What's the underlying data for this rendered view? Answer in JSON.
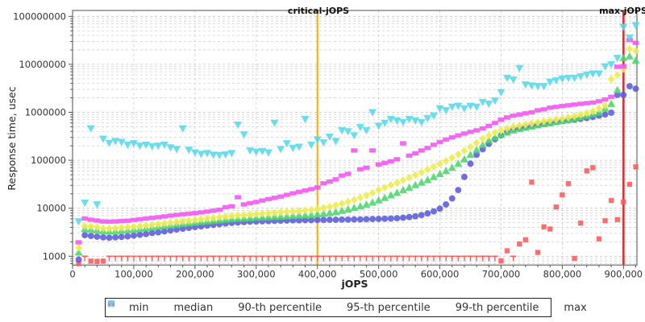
{
  "chart_data": {
    "type": "scatter",
    "title": "",
    "xlabel": "jOPS",
    "ylabel": "Response time, usec",
    "y_scale": "log",
    "grid": "dashed light-gray, log minor horizontal lines, vertical lines every 100000",
    "legend_position": "bottom-center",
    "xlim": [
      0,
      922000
    ],
    "ylim": [
      654,
      133000000
    ],
    "x_ticks": [
      0,
      100000,
      200000,
      300000,
      400000,
      500000,
      600000,
      700000,
      800000,
      900000
    ],
    "x_tick_labels": [
      "0",
      "100,000",
      "200,000",
      "300,000",
      "400,000",
      "500,000",
      "600,000",
      "700,000",
      "800,000",
      "900,000"
    ],
    "y_ticks": [
      1000,
      10000,
      100000,
      1000000,
      10000000,
      100000000
    ],
    "y_tick_labels": [
      "1000",
      "10000",
      "100000",
      "1000000",
      "10000000",
      "100000000"
    ],
    "reference_lines": [
      {
        "label": "critical-jOPS",
        "x": 400000,
        "color": "#ffaa00"
      },
      {
        "label": "max-jOPS",
        "x": 900000,
        "color": "#e03030"
      }
    ],
    "x": [
      10000,
      20000,
      30000,
      40000,
      50000,
      60000,
      70000,
      80000,
      90000,
      100000,
      110000,
      120000,
      130000,
      140000,
      150000,
      160000,
      170000,
      180000,
      190000,
      200000,
      210000,
      220000,
      230000,
      240000,
      250000,
      260000,
      270000,
      280000,
      290000,
      300000,
      310000,
      320000,
      330000,
      340000,
      350000,
      360000,
      370000,
      380000,
      390000,
      400000,
      410000,
      420000,
      430000,
      440000,
      450000,
      460000,
      470000,
      480000,
      490000,
      500000,
      510000,
      520000,
      530000,
      540000,
      550000,
      560000,
      570000,
      580000,
      590000,
      600000,
      610000,
      620000,
      630000,
      640000,
      650000,
      660000,
      670000,
      680000,
      690000,
      700000,
      710000,
      720000,
      730000,
      740000,
      750000,
      760000,
      770000,
      780000,
      790000,
      800000,
      810000,
      820000,
      830000,
      840000,
      850000,
      860000,
      870000,
      880000,
      890000,
      900000,
      910000,
      920000
    ],
    "series": [
      {
        "name": "min",
        "marker": "square",
        "color": "#ff5a5a",
        "values": [
          700,
          1000,
          790,
          780,
          790,
          1000,
          1000,
          1000,
          1000,
          1000,
          1000,
          1000,
          1000,
          1000,
          1000,
          1000,
          1000,
          1000,
          1000,
          1000,
          1000,
          1000,
          1000,
          1000,
          1000,
          1000,
          1000,
          1000,
          1000,
          1000,
          1000,
          1000,
          1000,
          1000,
          1000,
          1000,
          1000,
          1000,
          1000,
          1000,
          1000,
          1000,
          1000,
          1000,
          1000,
          1000,
          1000,
          1000,
          1000,
          1000,
          1000,
          1000,
          1000,
          1000,
          1000,
          1000,
          1000,
          1000,
          1000,
          1000,
          1000,
          1000,
          1000,
          1000,
          1000,
          1000,
          1000,
          1000,
          1000,
          800,
          1300,
          1000,
          1800,
          2200,
          35000,
          1200,
          4100,
          3700,
          10600,
          19000,
          32600,
          900,
          4900,
          60000,
          70000,
          2300,
          5500,
          14500,
          5800,
          13500,
          31500,
          73000
        ]
      },
      {
        "name": "median",
        "marker": "circle",
        "color": "#5b5bdb",
        "values": [
          850,
          2750,
          2650,
          2560,
          2480,
          2430,
          2480,
          2530,
          2600,
          2700,
          2800,
          2900,
          3050,
          3150,
          3300,
          3450,
          3600,
          3750,
          3900,
          4050,
          4200,
          4350,
          4500,
          4650,
          4800,
          4950,
          5050,
          5150,
          5250,
          5300,
          5350,
          5400,
          5450,
          5500,
          5550,
          5600,
          5600,
          5650,
          5650,
          5700,
          5700,
          5750,
          5750,
          5800,
          5800,
          5850,
          5850,
          5900,
          5950,
          6000,
          6050,
          6100,
          6200,
          6350,
          6550,
          6800,
          7200,
          7800,
          8600,
          9800,
          12000,
          16000,
          24000,
          45000,
          85000,
          130000,
          170000,
          220000,
          275000,
          330000,
          390000,
          440000,
          465000,
          490000,
          515000,
          545000,
          570000,
          600000,
          630000,
          660000,
          680000,
          700000,
          730000,
          760000,
          800000,
          850000,
          900000,
          980000,
          2300000,
          2300000,
          3500000,
          3100000
        ]
      },
      {
        "name": "90-th percentile",
        "marker": "triangle-up",
        "color": "#4fd56e",
        "values": [
          1200,
          3700,
          3620,
          3480,
          3350,
          3300,
          3350,
          3420,
          3500,
          3600,
          3720,
          3850,
          4000,
          4150,
          4300,
          4450,
          4600,
          4750,
          4900,
          5050,
          5200,
          5350,
          5500,
          5650,
          5800,
          5950,
          6050,
          6150,
          6250,
          6350,
          6450,
          6550,
          6650,
          6750,
          6850,
          6950,
          7050,
          7150,
          7300,
          7450,
          7700,
          8000,
          8400,
          8900,
          9500,
          10200,
          11000,
          12000,
          13200,
          14700,
          16500,
          18700,
          21000,
          24000,
          27000,
          30500,
          34500,
          39000,
          45000,
          52000,
          60000,
          70000,
          85000,
          105000,
          130000,
          165000,
          210000,
          260000,
          300000,
          340000,
          380000,
          420000,
          450000,
          480000,
          510000,
          540000,
          570000,
          600000,
          630000,
          660000,
          700000,
          740000,
          790000,
          850000,
          920000,
          1000000,
          1200000,
          1500000,
          2900000,
          13600000,
          14700000,
          12000000
        ]
      },
      {
        "name": "95-th percentile",
        "marker": "diamond",
        "color": "#ecec4e",
        "values": [
          1500,
          4300,
          4240,
          4060,
          3850,
          3800,
          3850,
          3950,
          4050,
          4150,
          4270,
          4400,
          4550,
          4700,
          4850,
          5000,
          5200,
          5400,
          5550,
          5750,
          5950,
          6150,
          6350,
          6550,
          6750,
          6950,
          7100,
          7300,
          7450,
          7600,
          7750,
          7900,
          8050,
          8250,
          8450,
          8600,
          8800,
          9000,
          9300,
          9700,
          10200,
          10800,
          11600,
          12500,
          13600,
          15000,
          16600,
          18500,
          21000,
          24000,
          27000,
          30500,
          34000,
          38500,
          43500,
          49000,
          56000,
          64000,
          73000,
          84000,
          97000,
          113000,
          133000,
          158000,
          190000,
          230000,
          280000,
          330000,
          380000,
          420000,
          460000,
          500000,
          530000,
          560000,
          590000,
          620000,
          650000,
          680000,
          710000,
          740000,
          780000,
          830000,
          890000,
          960000,
          1050000,
          1200000,
          1400000,
          4900000,
          6000000,
          8000000,
          21000000,
          19000000
        ]
      },
      {
        "name": "99-th percentile",
        "marker": "hrect",
        "color": "#f055f0",
        "values": [
          1950,
          6100,
          5750,
          5550,
          5300,
          5250,
          5300,
          5400,
          5500,
          5700,
          5900,
          6100,
          6300,
          6500,
          6750,
          7000,
          7250,
          7500,
          7700,
          7900,
          8200,
          8500,
          8900,
          9300,
          10500,
          11000,
          17000,
          12000,
          12800,
          13500,
          14500,
          15500,
          16500,
          17500,
          19000,
          20500,
          22000,
          23500,
          25000,
          27000,
          33000,
          36000,
          40000,
          48000,
          52000,
          160000,
          65000,
          70000,
          160000,
          82000,
          88000,
          95000,
          105000,
          225000,
          125000,
          140000,
          160000,
          180000,
          210000,
          240000,
          270000,
          300000,
          330000,
          360000,
          390000,
          420000,
          460000,
          520000,
          600000,
          700000,
          780000,
          850000,
          900000,
          950000,
          1000000,
          1100000,
          1150000,
          1250000,
          1300000,
          1350000,
          1400000,
          1450000,
          1500000,
          1550000,
          1600000,
          1700000,
          1850000,
          2100000,
          8900000,
          9000000,
          32000000,
          28000000
        ]
      },
      {
        "name": "max",
        "marker": "triangle-down",
        "color": "#58d8ea",
        "values": [
          5300,
          13000,
          460000,
          12000,
          280000,
          230000,
          250000,
          240000,
          210000,
          225000,
          200000,
          210000,
          195000,
          200000,
          210000,
          185000,
          170000,
          460000,
          165000,
          145000,
          135000,
          140000,
          130000,
          128000,
          132000,
          140000,
          550000,
          345000,
          160000,
          150000,
          155000,
          145000,
          600000,
          170000,
          225000,
          180000,
          190000,
          720000,
          210000,
          270000,
          235000,
          310000,
          250000,
          420000,
          400000,
          330000,
          490000,
          420000,
          1000000,
          520000,
          600000,
          720000,
          670000,
          620000,
          720000,
          670000,
          620000,
          750000,
          850000,
          1200000,
          1100000,
          1300000,
          1360000,
          1200000,
          1360000,
          1300000,
          1630000,
          1500000,
          1750000,
          2600000,
          5200000,
          4800000,
          8300000,
          3800000,
          3600000,
          3500000,
          3500000,
          4300000,
          4600000,
          5000000,
          5200000,
          5200000,
          5600000,
          6100000,
          6400000,
          6400000,
          9000000,
          10000000,
          13500000,
          60000000,
          36000000,
          65000000
        ]
      }
    ]
  }
}
